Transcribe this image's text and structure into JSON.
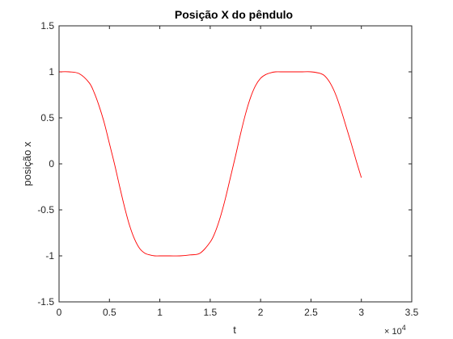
{
  "chart_data": {
    "type": "line",
    "title": "Posição X do pêndulo",
    "xlabel": "t",
    "ylabel": "posição x",
    "x_exponent_label": "× 10",
    "x_exponent_power": "4",
    "xlim": [
      0,
      3.5
    ],
    "ylim": [
      -1.5,
      1.5
    ],
    "x_ticks": [
      0,
      0.5,
      1,
      1.5,
      2,
      2.5,
      3,
      3.5
    ],
    "x_tick_labels": [
      "0",
      "0.5",
      "1",
      "1.5",
      "2",
      "2.5",
      "3",
      "3.5"
    ],
    "y_ticks": [
      1.5,
      1,
      0.5,
      0,
      -0.5,
      -1,
      -1.5
    ],
    "y_tick_labels": [
      "1.5",
      "1",
      "0.5",
      "0",
      "-0.5",
      "-1",
      "-1.5"
    ],
    "grid": false,
    "series": [
      {
        "color": "#ff0000",
        "x": [
          0,
          0.1,
          0.2,
          0.3,
          0.35,
          0.4,
          0.45,
          0.5,
          0.55,
          0.6,
          0.65,
          0.7,
          0.75,
          0.8,
          0.85,
          0.9,
          0.95,
          1.0,
          1.1,
          1.2,
          1.3,
          1.4,
          1.5,
          1.55,
          1.6,
          1.65,
          1.7,
          1.75,
          1.8,
          1.85,
          1.9,
          1.95,
          2.0,
          2.05,
          2.1,
          2.15,
          2.2,
          2.3,
          2.4,
          2.5,
          2.6,
          2.65,
          2.7,
          2.75,
          2.8,
          2.85,
          2.9,
          2.95,
          3.0
        ],
        "y": [
          1.0,
          1.0,
          0.98,
          0.88,
          0.77,
          0.62,
          0.44,
          0.22,
          0.0,
          -0.24,
          -0.47,
          -0.67,
          -0.82,
          -0.92,
          -0.97,
          -0.99,
          -1.0,
          -1.0,
          -1.0,
          -1.0,
          -0.99,
          -0.97,
          -0.85,
          -0.74,
          -0.58,
          -0.38,
          -0.15,
          0.08,
          0.32,
          0.54,
          0.72,
          0.85,
          0.93,
          0.97,
          0.99,
          1.0,
          1.0,
          1.0,
          1.0,
          1.0,
          0.98,
          0.94,
          0.86,
          0.74,
          0.58,
          0.4,
          0.22,
          0.03,
          -0.15
        ]
      }
    ]
  }
}
